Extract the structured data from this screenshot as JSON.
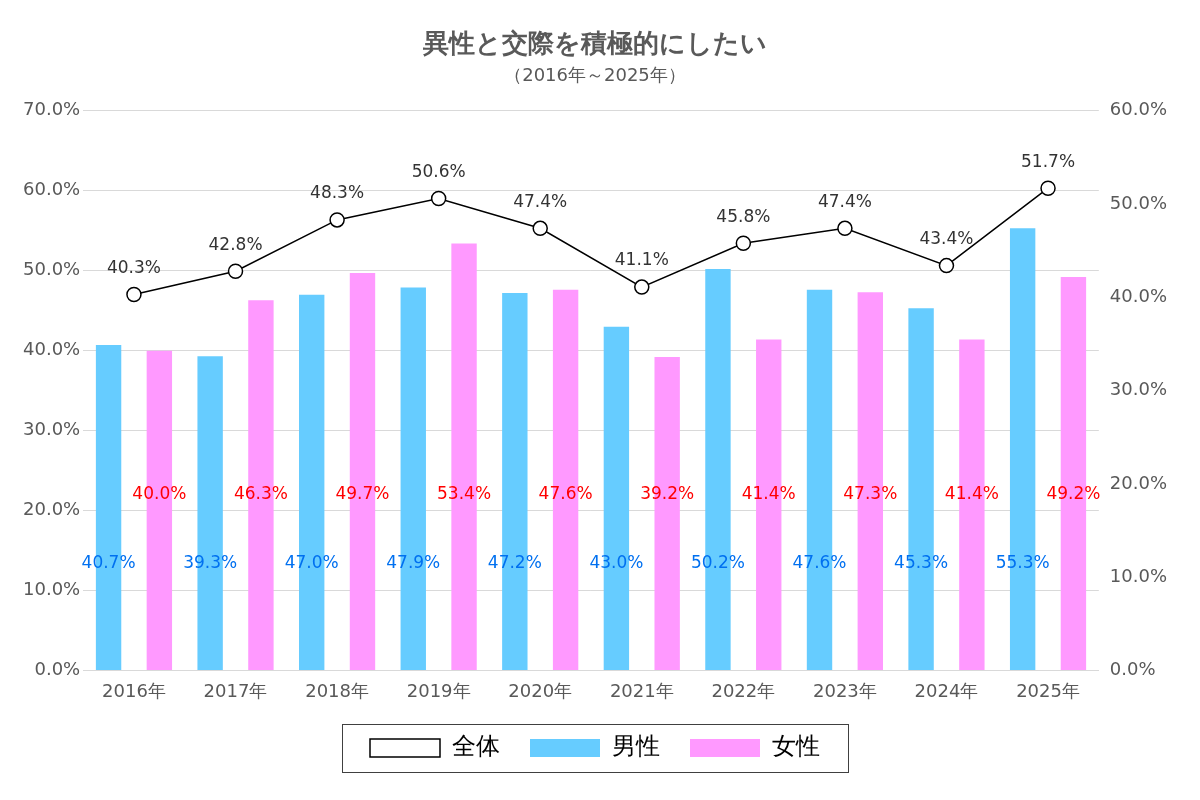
{
  "chart_data": {
    "type": "bar",
    "title": "異性と交際を積極的にしたい",
    "subtitle": "（2016年～2025年）",
    "categories": [
      "2016年",
      "2017年",
      "2018年",
      "2019年",
      "2020年",
      "2021年",
      "2022年",
      "2023年",
      "2024年",
      "2025年"
    ],
    "series": [
      {
        "name": "男性",
        "color": "#66ccff",
        "values": [
          40.7,
          39.3,
          47.0,
          47.9,
          47.2,
          43.0,
          50.2,
          47.6,
          45.3,
          55.3
        ],
        "value_labels": [
          "40.7%",
          "39.3%",
          "47.0%",
          "47.9%",
          "47.2%",
          "43.0%",
          "50.2%",
          "47.6%",
          "45.3%",
          "55.3%"
        ]
      },
      {
        "name": "女性",
        "color": "#ff99ff",
        "values": [
          40.0,
          46.3,
          49.7,
          53.4,
          47.6,
          39.2,
          41.4,
          47.3,
          41.4,
          49.2
        ],
        "value_labels": [
          "40.0%",
          "46.3%",
          "49.7%",
          "53.4%",
          "47.6%",
          "39.2%",
          "41.4%",
          "47.3%",
          "41.4%",
          "49.2%"
        ]
      },
      {
        "name": "全体",
        "type": "line",
        "axis": "y2",
        "color": "#000000",
        "marker": "circle",
        "line_style": "solid",
        "values": [
          40.3,
          42.8,
          48.3,
          50.6,
          47.4,
          41.1,
          45.8,
          47.4,
          43.4,
          51.7
        ],
        "value_labels": [
          "40.3%",
          "42.8%",
          "48.3%",
          "50.6%",
          "47.4%",
          "41.1%",
          "45.8%",
          "47.4%",
          "43.4%",
          "51.7%"
        ]
      }
    ],
    "ylim": [
      0,
      70
    ],
    "yticks": [
      {
        "value": 0,
        "label": "0.0%"
      },
      {
        "value": 10,
        "label": "10.0%"
      },
      {
        "value": 20,
        "label": "20.0%"
      },
      {
        "value": 30,
        "label": "30.0%"
      },
      {
        "value": 40,
        "label": "40.0%"
      },
      {
        "value": 50,
        "label": "50.0%"
      },
      {
        "value": 60,
        "label": "60.0%"
      },
      {
        "value": 70,
        "label": "70.0%"
      }
    ],
    "y2lim": [
      0,
      60
    ],
    "y2ticks": [
      {
        "value": 0,
        "label": "0.0%"
      },
      {
        "value": 10,
        "label": "10.0%"
      },
      {
        "value": 20,
        "label": "20.0%"
      },
      {
        "value": 30,
        "label": "30.0%"
      },
      {
        "value": 40,
        "label": "40.0%"
      },
      {
        "value": 50,
        "label": "50.0%"
      },
      {
        "value": 60,
        "label": "60.0%"
      }
    ],
    "grid": true,
    "legend": "bottom",
    "data_labels": true
  }
}
